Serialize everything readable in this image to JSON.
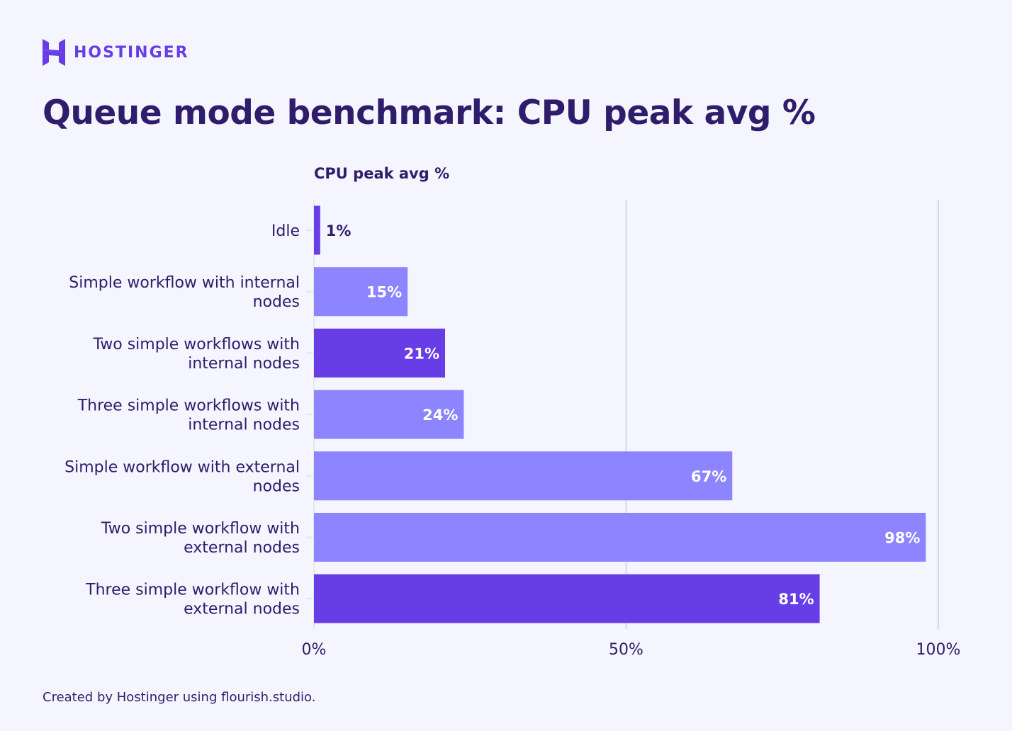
{
  "brand": {
    "name": "HOSTINGER",
    "color": "#673DE6"
  },
  "title": "Queue mode benchmark: CPU peak avg %",
  "footer": "Created by Hostinger using flourish.studio.",
  "chart_data": {
    "type": "bar",
    "orientation": "horizontal",
    "title": "Queue mode benchmark: CPU peak avg %",
    "xlabel": "CPU peak avg %",
    "categories": [
      "Idle",
      "Simple workflow with internal nodes",
      "Two simple workflows with internal nodes",
      "Three simple workflows with internal nodes",
      "Simple workflow with external nodes",
      "Two simple workflow with external nodes",
      "Three simple workflow with external nodes"
    ],
    "category_lines": [
      [
        "Idle"
      ],
      [
        "Simple workflow with internal",
        "nodes"
      ],
      [
        "Two simple workflows with",
        "internal nodes"
      ],
      [
        "Three simple workflows with",
        "internal nodes"
      ],
      [
        "Simple workflow with external",
        "nodes"
      ],
      [
        "Two simple workflow with",
        "external nodes"
      ],
      [
        "Three simple workflow with",
        "external nodes"
      ]
    ],
    "values": [
      1,
      15,
      21,
      24,
      67,
      98,
      81
    ],
    "data_labels": [
      "1%",
      "15%",
      "21%",
      "24%",
      "67%",
      "98%",
      "81%"
    ],
    "bar_colors": [
      "#673DE6",
      "#8C85FF",
      "#673DE6",
      "#8C85FF",
      "#8C85FF",
      "#8C85FF",
      "#673DE6"
    ],
    "xlim": [
      0,
      100
    ],
    "xticks": [
      0,
      50,
      100
    ],
    "xtick_labels": [
      "0%",
      "50%",
      "100%"
    ],
    "grid": true
  }
}
